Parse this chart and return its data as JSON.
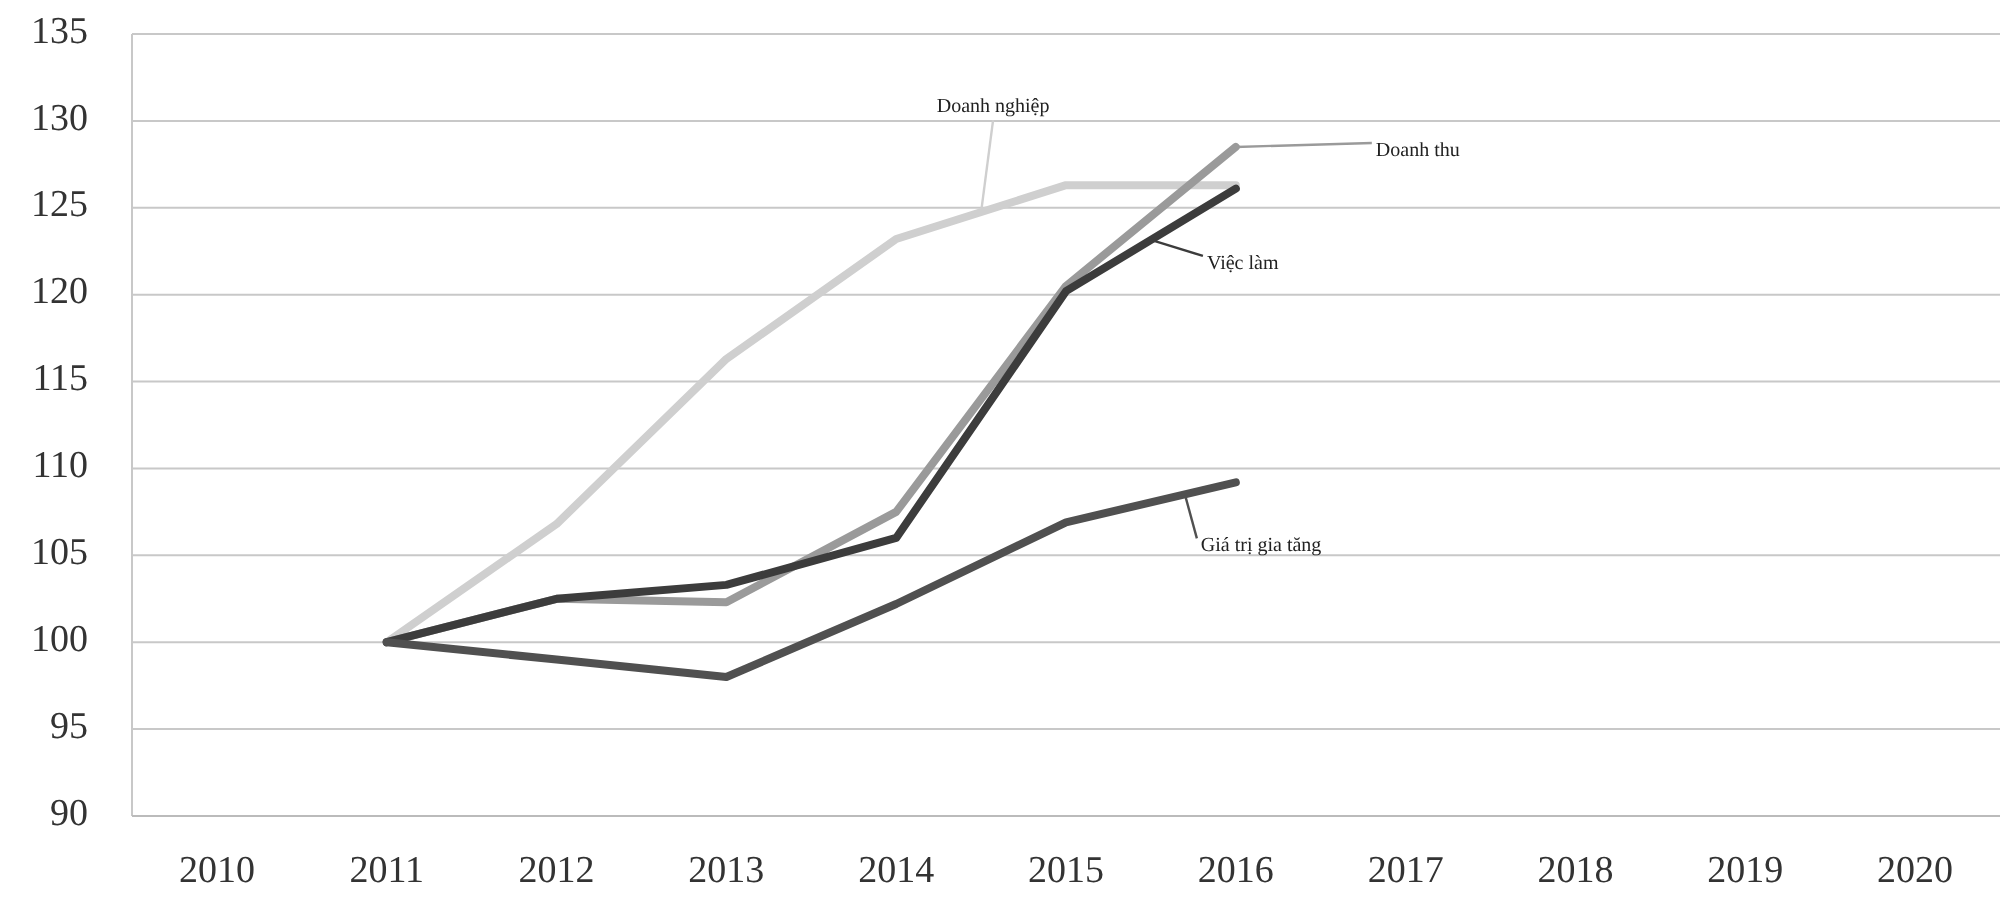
{
  "chart_data": {
    "type": "line",
    "categories": [
      "2010",
      "2011",
      "2012",
      "2013",
      "2014",
      "2015",
      "2016",
      "2017",
      "2018",
      "2019",
      "2020"
    ],
    "ylim": [
      90,
      135
    ],
    "yticks": [
      90,
      95,
      100,
      105,
      110,
      115,
      120,
      125,
      130,
      135
    ],
    "grid": "y",
    "marker": "none",
    "line_style": "solid",
    "series": [
      {
        "name": "Doanh nghiệp",
        "color": "#cfcfcf",
        "values": [
          null,
          100,
          106.8,
          116.3,
          123.2,
          126.3,
          126.3,
          null,
          null,
          null,
          null
        ]
      },
      {
        "name": "Doanh thu",
        "color": "#9a9a9a",
        "values": [
          null,
          100,
          102.5,
          102.3,
          107.5,
          120.5,
          128.5,
          null,
          null,
          null,
          null
        ]
      },
      {
        "name": "Việc làm",
        "color": "#3c3c3c",
        "values": [
          null,
          100,
          102.5,
          103.3,
          106,
          120.2,
          126.1,
          null,
          null,
          null,
          null
        ]
      },
      {
        "name": "Giá trị gia tăng",
        "color": "#505050",
        "values": [
          null,
          100,
          99,
          98,
          102.2,
          106.9,
          109.2,
          null,
          null,
          null,
          null
        ]
      }
    ]
  }
}
